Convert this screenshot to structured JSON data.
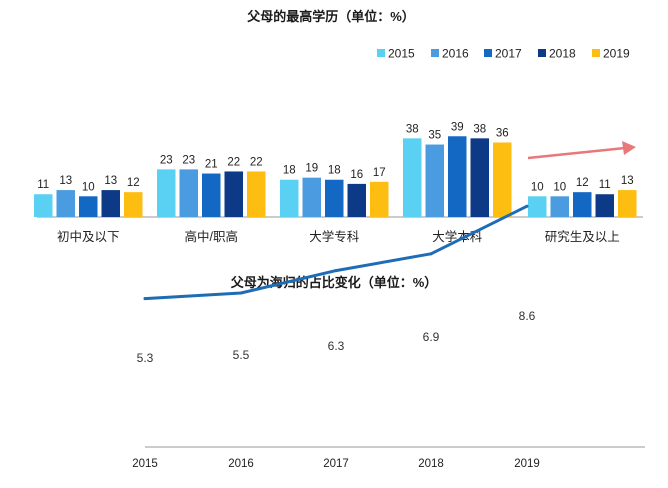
{
  "chart_data": [
    {
      "type": "bar",
      "title": "父母的最高学历（单位：%）",
      "categories": [
        "初中及以下",
        "高中/职高",
        "大学专科",
        "大学本科",
        "研究生及以上"
      ],
      "series": [
        {
          "name": "2015",
          "color": "#5ad0f3",
          "values": [
            11,
            23,
            18,
            38,
            10
          ]
        },
        {
          "name": "2016",
          "color": "#4a9be0",
          "values": [
            13,
            23,
            19,
            35,
            10
          ]
        },
        {
          "name": "2017",
          "color": "#1268c2",
          "values": [
            10,
            21,
            18,
            39,
            12
          ]
        },
        {
          "name": "2018",
          "color": "#0d3a86",
          "values": [
            13,
            22,
            16,
            38,
            11
          ]
        },
        {
          "name": "2019",
          "color": "#fdbd11",
          "values": [
            12,
            22,
            17,
            36,
            13
          ]
        }
      ],
      "legend_position": "top-right",
      "trend_arrow_color": "#e8787a",
      "ylim": [
        0,
        40
      ]
    },
    {
      "type": "line",
      "title": "父母为海归的占比变化（单位：%）",
      "x": [
        "2015",
        "2016",
        "2017",
        "2018",
        "2019"
      ],
      "series": [
        {
          "color": "#1e6cb5",
          "values": [
            5.3,
            5.5,
            6.3,
            6.9,
            8.6
          ]
        }
      ],
      "value_labels": [
        "5.3",
        "5.5",
        "6.3",
        "6.9",
        "8.6"
      ],
      "ylim": [
        0,
        10
      ]
    }
  ]
}
